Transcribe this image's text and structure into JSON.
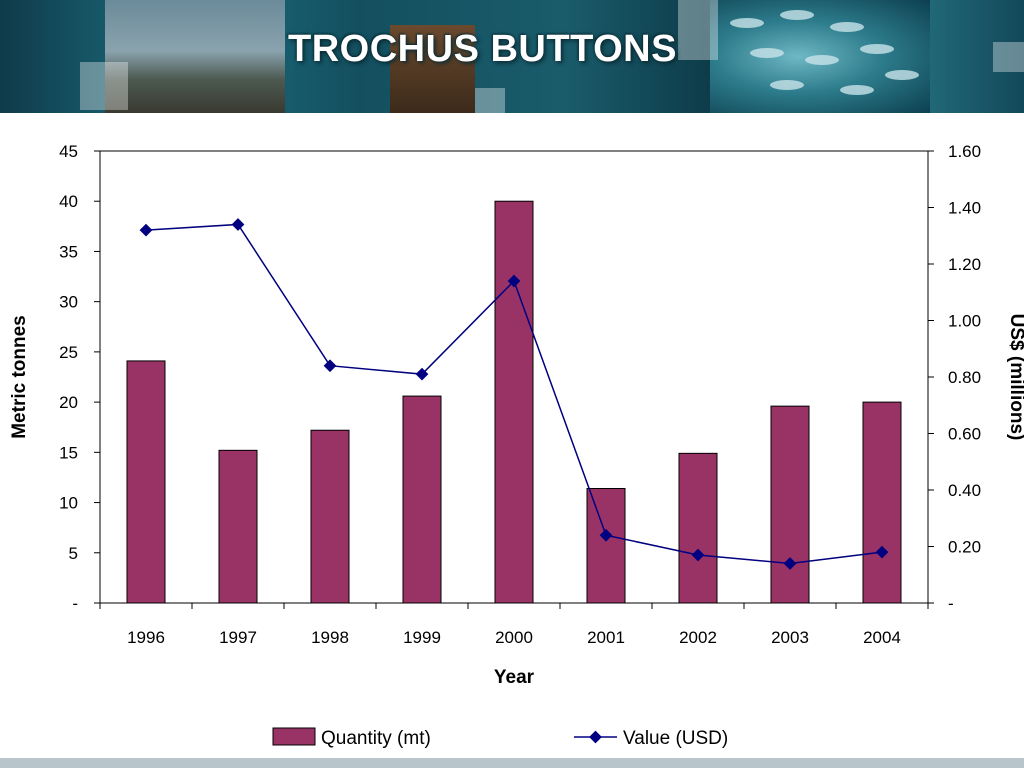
{
  "slide": {
    "title": "TROCHUS BUTTONS"
  },
  "chart_data": {
    "type": "bar",
    "categories": [
      "1996",
      "1997",
      "1998",
      "1999",
      "2000",
      "2001",
      "2002",
      "2003",
      "2004"
    ],
    "series": [
      {
        "name": "Quantity (mt)",
        "type": "bar",
        "axis": "left",
        "values": [
          24.1,
          15.2,
          17.2,
          20.6,
          40.0,
          11.4,
          14.9,
          19.6,
          20.0
        ],
        "color": "#993366"
      },
      {
        "name": "Value (USD)",
        "type": "line",
        "axis": "right",
        "values": [
          1.32,
          1.34,
          0.84,
          0.81,
          1.14,
          0.24,
          0.17,
          0.14,
          0.18
        ],
        "color": "#000080"
      }
    ],
    "xlabel": "Year",
    "ylabel": "Metric tonnes",
    "y2label": "US$ (millions)",
    "ylim": [
      0,
      45
    ],
    "y2lim": [
      0,
      1.6
    ],
    "yticks": [
      "-",
      "5",
      "10",
      "15",
      "20",
      "25",
      "30",
      "35",
      "40",
      "45"
    ],
    "y2ticks": [
      "-",
      "0.20",
      "0.40",
      "0.60",
      "0.80",
      "1.00",
      "1.20",
      "1.40",
      "1.60"
    ],
    "grid": false,
    "legend_position": "bottom"
  }
}
